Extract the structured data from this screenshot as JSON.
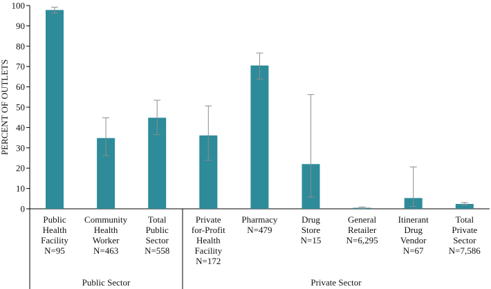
{
  "chart_data": {
    "type": "bar",
    "ylabel": "PERCENT OF OUTLETS",
    "ylim": [
      0,
      100
    ],
    "yticks": [
      0,
      10,
      20,
      30,
      40,
      50,
      60,
      70,
      80,
      90,
      100
    ],
    "grid": false,
    "bar_color": "#2e8b9a",
    "error_color": "#8c8c8c",
    "categories": [
      {
        "label": [
          "Public",
          "Health",
          "Facility",
          "N=95"
        ],
        "value": 97.8,
        "err_low": 96.3,
        "err_high": 99.2,
        "group": 0
      },
      {
        "label": [
          "Community",
          "Health",
          "Worker",
          "N=463"
        ],
        "value": 34.8,
        "err_low": 26.2,
        "err_high": 44.8,
        "group": 0
      },
      {
        "label": [
          "Total",
          "Public",
          "Sector",
          "N=558"
        ],
        "value": 44.8,
        "err_low": 36.5,
        "err_high": 53.4,
        "group": 0
      },
      {
        "label": [
          "Private",
          "for-Profit",
          "Health",
          "Facility",
          "N=172"
        ],
        "value": 36.1,
        "err_low": 23.9,
        "err_high": 50.6,
        "group": 1
      },
      {
        "label": [
          "Pharmacy",
          "N=479"
        ],
        "value": 70.5,
        "err_low": 63.8,
        "err_high": 76.6,
        "group": 1
      },
      {
        "label": [
          "Drug",
          "Store",
          "N=15"
        ],
        "value": 22.0,
        "err_low": 5.8,
        "err_high": 56.2,
        "group": 1
      },
      {
        "label": [
          "General",
          "Retailer",
          "N=6,295"
        ],
        "value": 0.5,
        "err_low": 0.3,
        "err_high": 0.9,
        "group": 1
      },
      {
        "label": [
          "Itinerant",
          "Drug",
          "Vendor",
          "N=67"
        ],
        "value": 5.3,
        "err_low": 1.2,
        "err_high": 20.6,
        "group": 1
      },
      {
        "label": [
          "Total",
          "Private",
          "Sector",
          "N=7,586"
        ],
        "value": 2.4,
        "err_low": 1.8,
        "err_high": 3.1,
        "group": 1
      }
    ],
    "groups": [
      "Public Sector",
      "Private Sector"
    ]
  }
}
